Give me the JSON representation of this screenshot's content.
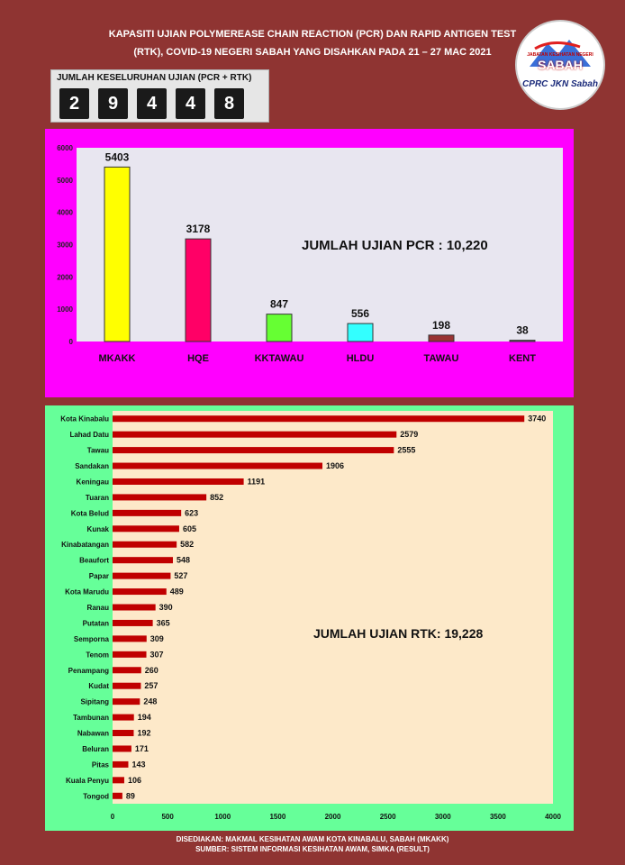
{
  "header": {
    "title_line1": "KAPASITI UJIAN POLYMEREASE CHAIN REACTION (PCR) DAN RAPID ANTIGEN TEST",
    "title_line2": "(RTK), COVID-19 NEGERI SABAH YANG DISAHKAN PADA 21 – 27 MAC 2021"
  },
  "logo": {
    "top_text": "JABATAN KESIHATAN NEGERI",
    "main_text": "SABAH",
    "bottom_text": "CPRC JKN Sabah"
  },
  "counter": {
    "label": "JUMLAH KESELURUHAN UJIAN (PCR + RTK)",
    "digits": [
      "2",
      "9",
      "4",
      "4",
      "8"
    ]
  },
  "chart_data": [
    {
      "type": "bar",
      "categories": [
        "MKAKK",
        "HQE",
        "KKTAWAU",
        "HLDU",
        "TAWAU",
        "KENT"
      ],
      "values": [
        5403,
        3178,
        847,
        556,
        198,
        38
      ],
      "colors": [
        "#ffff00",
        "#ff0066",
        "#66ff33",
        "#33ffff",
        "#993333",
        "#666666"
      ],
      "yticks": [
        0,
        1000,
        2000,
        3000,
        4000,
        5000,
        6000
      ],
      "ylim": [
        0,
        6000
      ],
      "annotation": "JUMLAH UJIAN PCR : 10,220",
      "grid": false
    },
    {
      "type": "bar",
      "orientation": "horizontal",
      "categories": [
        "Kota Kinabalu",
        "Lahad Datu",
        "Tawau",
        "Sandakan",
        "Keningau",
        "Tuaran",
        "Kota Belud",
        "Kunak",
        "Kinabatangan",
        "Beaufort",
        "Papar",
        "Kota Marudu",
        "Ranau",
        "Putatan",
        "Semporna",
        "Tenom",
        "Penampang",
        "Kudat",
        "Sipitang",
        "Tambunan",
        "Nabawan",
        "Beluran",
        "Pitas",
        "Kuala Penyu",
        "Tongod"
      ],
      "values": [
        3740,
        2579,
        2555,
        1906,
        1191,
        852,
        623,
        605,
        582,
        548,
        527,
        489,
        390,
        365,
        309,
        307,
        260,
        257,
        248,
        194,
        192,
        171,
        143,
        106,
        89
      ],
      "color": "#c00000",
      "xticks": [
        0,
        500,
        1000,
        1500,
        2000,
        2500,
        3000,
        3500,
        4000
      ],
      "xlim": [
        0,
        4000
      ],
      "annotation": "JUMLAH UJIAN RTK: 19,228",
      "grid": false
    }
  ],
  "footer": {
    "line1": "DISEDIAKAN: MAKMAL KESIHATAN AWAM KOTA KINABALU, SABAH (MKAKK)",
    "line2": "SUMBER: SISTEM INFORMASI KESIHATAN AWAM, SIMKA (RESULT)"
  }
}
